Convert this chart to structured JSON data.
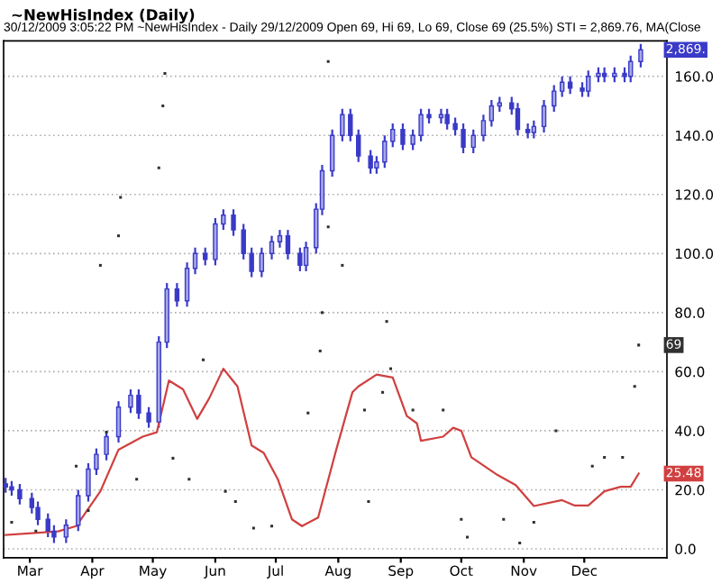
{
  "chart_data": {
    "type": "candlestick",
    "title": "~NewHisIndex (Daily)",
    "subtitle": "30/12/2009 3:05:22 PM ~NewHisIndex - Daily 29/12/2009 Open 69, Hi 69, Lo 69, Close 69 (25.5%) STI = 2,869.76, MA(Close",
    "x": [
      "2009-02-17",
      "2009-02-20",
      "2009-02-24",
      "2009-03-02",
      "2009-03-05",
      "2009-03-10",
      "2009-03-13",
      "2009-03-19",
      "2009-03-25",
      "2009-03-30",
      "2009-04-03",
      "2009-04-08",
      "2009-04-14",
      "2009-04-20",
      "2009-04-24",
      "2009-04-29",
      "2009-05-04",
      "2009-05-08",
      "2009-05-13",
      "2009-05-18",
      "2009-05-22",
      "2009-05-27",
      "2009-06-01",
      "2009-06-05",
      "2009-06-10",
      "2009-06-15",
      "2009-06-19",
      "2009-06-24",
      "2009-06-29",
      "2009-07-03",
      "2009-07-07",
      "2009-07-13",
      "2009-07-16",
      "2009-07-21",
      "2009-07-24",
      "2009-07-29",
      "2009-08-03",
      "2009-08-07",
      "2009-08-11",
      "2009-08-17",
      "2009-08-20",
      "2009-08-24",
      "2009-08-28",
      "2009-09-02",
      "2009-09-07",
      "2009-09-11",
      "2009-09-15",
      "2009-09-21",
      "2009-09-24",
      "2009-09-28",
      "2009-10-02",
      "2009-10-07",
      "2009-10-12",
      "2009-10-16",
      "2009-10-20",
      "2009-10-26",
      "2009-10-29",
      "2009-11-03",
      "2009-11-06",
      "2009-11-11",
      "2009-11-16",
      "2009-11-20",
      "2009-11-24",
      "2009-11-30",
      "2009-12-03",
      "2009-12-08",
      "2009-12-11",
      "2009-12-16",
      "2009-12-21",
      "2009-12-24",
      "2009-12-29"
    ],
    "ohlc": [
      [
        22,
        24,
        19,
        21
      ],
      [
        21,
        23,
        18,
        20
      ],
      [
        20,
        22,
        15,
        17
      ],
      [
        17,
        19,
        12,
        14
      ],
      [
        14,
        16,
        8,
        10
      ],
      [
        10,
        12,
        4,
        6
      ],
      [
        6,
        8,
        2,
        4
      ],
      [
        4,
        10,
        2,
        8
      ],
      [
        8,
        20,
        6,
        18
      ],
      [
        18,
        29,
        16,
        27
      ],
      [
        27,
        34,
        25,
        32
      ],
      [
        32,
        40,
        30,
        38
      ],
      [
        38,
        50,
        36,
        48
      ],
      [
        48,
        54,
        46,
        52
      ],
      [
        52,
        54,
        44,
        46
      ],
      [
        46,
        48,
        41,
        43
      ],
      [
        43,
        72,
        41,
        70
      ],
      [
        70,
        90,
        68,
        88
      ],
      [
        88,
        90,
        82,
        84
      ],
      [
        84,
        97,
        82,
        95
      ],
      [
        95,
        102,
        93,
        100
      ],
      [
        100,
        102,
        96,
        98
      ],
      [
        98,
        112,
        96,
        110
      ],
      [
        110,
        115,
        108,
        113
      ],
      [
        113,
        115,
        106,
        108
      ],
      [
        108,
        110,
        98,
        100
      ],
      [
        100,
        102,
        92,
        94
      ],
      [
        94,
        102,
        92,
        100
      ],
      [
        100,
        106,
        98,
        104
      ],
      [
        104,
        108,
        102,
        106
      ],
      [
        106,
        108,
        98,
        100
      ],
      [
        100,
        102,
        94,
        96
      ],
      [
        96,
        104,
        94,
        102
      ],
      [
        102,
        117,
        100,
        115
      ],
      [
        115,
        130,
        113,
        128
      ],
      [
        128,
        142,
        126,
        140
      ],
      [
        140,
        149,
        138,
        147
      ],
      [
        147,
        149,
        138,
        140
      ],
      [
        140,
        142,
        131,
        133
      ],
      [
        133,
        135,
        127,
        129
      ],
      [
        129,
        133,
        127,
        131
      ],
      [
        131,
        140,
        129,
        138
      ],
      [
        138,
        144,
        136,
        142
      ],
      [
        142,
        144,
        135,
        137
      ],
      [
        137,
        142,
        135,
        140
      ],
      [
        140,
        149,
        138,
        147
      ],
      [
        147,
        149,
        144,
        146
      ],
      [
        146,
        149,
        144,
        147
      ],
      [
        147,
        149,
        142,
        144
      ],
      [
        144,
        146,
        140,
        142
      ],
      [
        142,
        144,
        134,
        136
      ],
      [
        136,
        142,
        134,
        140
      ],
      [
        140,
        147,
        138,
        145
      ],
      [
        145,
        152,
        143,
        150
      ],
      [
        150,
        153,
        148,
        151
      ],
      [
        151,
        153,
        147,
        149
      ],
      [
        149,
        151,
        140,
        142
      ],
      [
        142,
        144,
        139,
        141
      ],
      [
        141,
        145,
        139,
        143
      ],
      [
        143,
        152,
        141,
        150
      ],
      [
        150,
        157,
        148,
        155
      ],
      [
        155,
        160,
        153,
        158
      ],
      [
        158,
        160,
        154,
        156
      ],
      [
        156,
        158,
        153,
        155
      ],
      [
        155,
        162,
        153,
        160
      ],
      [
        160,
        163,
        158,
        161
      ],
      [
        161,
        163,
        158,
        160
      ],
      [
        160,
        163,
        158,
        161
      ],
      [
        161,
        163,
        158,
        160
      ],
      [
        160,
        167,
        158,
        165
      ],
      [
        165,
        171,
        163,
        169
      ]
    ],
    "color": "#3a3ac8",
    "series": [
      {
        "type": "line",
        "color": "#d04040",
        "x": [
          "2009-02-17",
          "2009-03-15",
          "2009-03-24",
          "2009-04-05",
          "2009-04-14",
          "2009-04-26",
          "2009-05-03",
          "2009-05-09",
          "2009-05-16",
          "2009-05-23",
          "2009-05-29",
          "2009-06-05",
          "2009-06-12",
          "2009-06-19",
          "2009-06-25",
          "2009-07-02",
          "2009-07-09",
          "2009-07-14",
          "2009-07-22",
          "2009-07-31",
          "2009-08-08",
          "2009-08-11",
          "2009-08-20",
          "2009-08-28",
          "2009-09-04",
          "2009-09-09",
          "2009-09-11",
          "2009-09-22",
          "2009-09-27",
          "2009-10-01",
          "2009-10-06",
          "2009-10-19",
          "2009-10-28",
          "2009-11-06",
          "2009-11-20",
          "2009-11-26",
          "2009-12-03",
          "2009-12-11",
          "2009-12-19",
          "2009-12-24",
          "2009-12-28"
        ],
        "values": [
          4.7,
          5.9,
          7.7,
          19.5,
          33.6,
          38,
          39.5,
          57,
          54,
          44,
          51,
          61,
          55,
          35,
          32.5,
          23.6,
          10,
          7.7,
          10.6,
          33.6,
          53,
          55,
          59,
          58,
          45,
          42.5,
          36.6,
          38,
          41,
          40,
          31,
          25,
          21.6,
          14.5,
          16.5,
          14.7,
          14.7,
          19.5,
          21,
          21,
          25.5
        ]
      },
      {
        "type": "scatter",
        "color": "#303030",
        "marker": "square",
        "x": [
          "2009-02-20",
          "2009-03-04",
          "2009-03-24",
          "2009-03-30",
          "2009-04-05",
          "2009-04-08",
          "2009-04-14",
          "2009-04-15",
          "2009-04-23",
          "2009-05-04",
          "2009-05-06",
          "2009-05-07",
          "2009-05-11",
          "2009-05-19",
          "2009-05-26",
          "2009-06-06",
          "2009-06-11",
          "2009-06-20",
          "2009-06-29",
          "2009-07-17",
          "2009-07-23",
          "2009-07-24",
          "2009-07-27",
          "2009-07-27",
          "2009-08-03",
          "2009-08-14",
          "2009-08-16",
          "2009-08-23",
          "2009-08-25",
          "2009-08-27",
          "2009-09-07",
          "2009-09-22",
          "2009-10-01",
          "2009-10-04",
          "2009-10-22",
          "2009-10-30",
          "2009-11-06",
          "2009-11-17",
          "2009-12-05",
          "2009-12-11",
          "2009-12-20",
          "2009-12-26",
          "2009-12-28"
        ],
        "values": [
          9,
          6,
          28,
          13,
          96,
          39.5,
          106,
          119,
          23.6,
          129,
          150,
          161,
          30.7,
          23.6,
          64,
          19.5,
          16,
          7,
          7.7,
          46,
          67,
          80,
          165,
          109,
          96,
          47,
          16,
          53,
          77,
          61,
          47,
          47,
          10,
          4,
          10,
          2,
          9,
          40,
          28,
          31,
          31,
          55,
          69
        ]
      }
    ],
    "annotations": [
      {
        "text": "2,869.",
        "x": "2009-12-29",
        "y": 169
      },
      {
        "text": "69",
        "x": "2009-12-29",
        "y": 69
      },
      {
        "text": "25.48",
        "x": "2009-12-29",
        "y": 25.5
      }
    ],
    "xlim": [
      "2009-02-16",
      "2010-01-11"
    ],
    "xticks": [
      {
        "value": "2009-03-01",
        "label": "Mar"
      },
      {
        "value": "2009-04-01",
        "label": "Apr"
      },
      {
        "value": "2009-05-01",
        "label": "May"
      },
      {
        "value": "2009-06-01",
        "label": "Jun"
      },
      {
        "value": "2009-07-01",
        "label": "Jul"
      },
      {
        "value": "2009-08-01",
        "label": "Aug"
      },
      {
        "value": "2009-09-01",
        "label": "Sep"
      },
      {
        "value": "2009-10-01",
        "label": "Oct"
      },
      {
        "value": "2009-11-01",
        "label": "Nov"
      },
      {
        "value": "2009-12-01",
        "label": "Dec"
      }
    ],
    "ylim": [
      -3,
      172
    ],
    "yticks": [
      {
        "value": 0,
        "label": "0.0"
      },
      {
        "value": 20,
        "label": "20.0"
      },
      {
        "value": 40,
        "label": "40.0"
      },
      {
        "value": 60,
        "label": "60.0"
      },
      {
        "value": 80,
        "label": "80.0"
      },
      {
        "value": 100,
        "label": "100.0"
      },
      {
        "value": 120,
        "label": "120.0"
      },
      {
        "value": 140,
        "label": "140.0"
      },
      {
        "value": 160,
        "label": "160.0"
      }
    ],
    "grid": "y"
  }
}
